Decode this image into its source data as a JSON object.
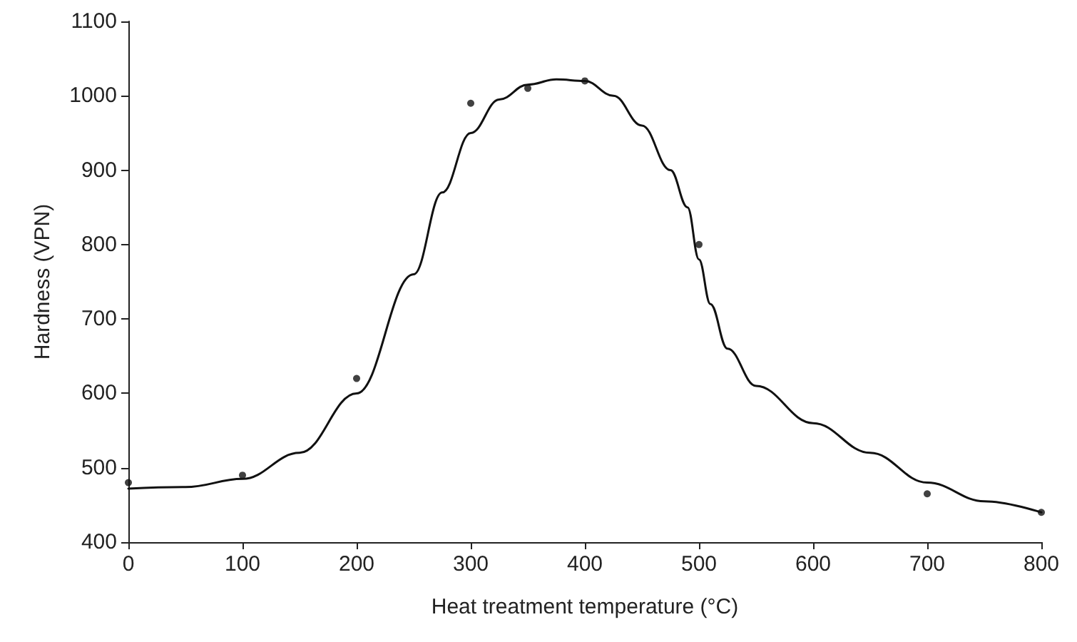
{
  "chart_data": {
    "type": "scatter",
    "xlabel": "Heat treatment temperature (°C)",
    "ylabel": "Hardness (VPN)",
    "xlim": [
      0,
      800
    ],
    "xticks": [
      0,
      100,
      200,
      300,
      400,
      500,
      600,
      700,
      800
    ],
    "ylim": [
      400,
      1100
    ],
    "yticks": [
      400,
      500,
      600,
      700,
      800,
      900,
      1000,
      1100
    ],
    "grid": false,
    "series": [
      {
        "marker": "circle",
        "color": "#111111",
        "x": [
          0,
          100,
          200,
          300,
          350,
          400,
          500,
          700,
          800
        ],
        "values": [
          480,
          490,
          620,
          990,
          1010,
          1020,
          800,
          465,
          440
        ]
      },
      {
        "type": "line",
        "marker": "none",
        "line_style": "solid",
        "color": "#111111",
        "x": [
          0,
          50,
          100,
          150,
          200,
          250,
          275,
          300,
          325,
          350,
          375,
          400,
          425,
          450,
          475,
          490,
          500,
          510,
          525,
          550,
          600,
          650,
          700,
          750,
          800
        ],
        "values": [
          472,
          474,
          485,
          520,
          600,
          760,
          870,
          950,
          995,
          1015,
          1022,
          1020,
          1000,
          960,
          900,
          850,
          780,
          720,
          660,
          610,
          560,
          520,
          480,
          455,
          440
        ]
      }
    ]
  }
}
